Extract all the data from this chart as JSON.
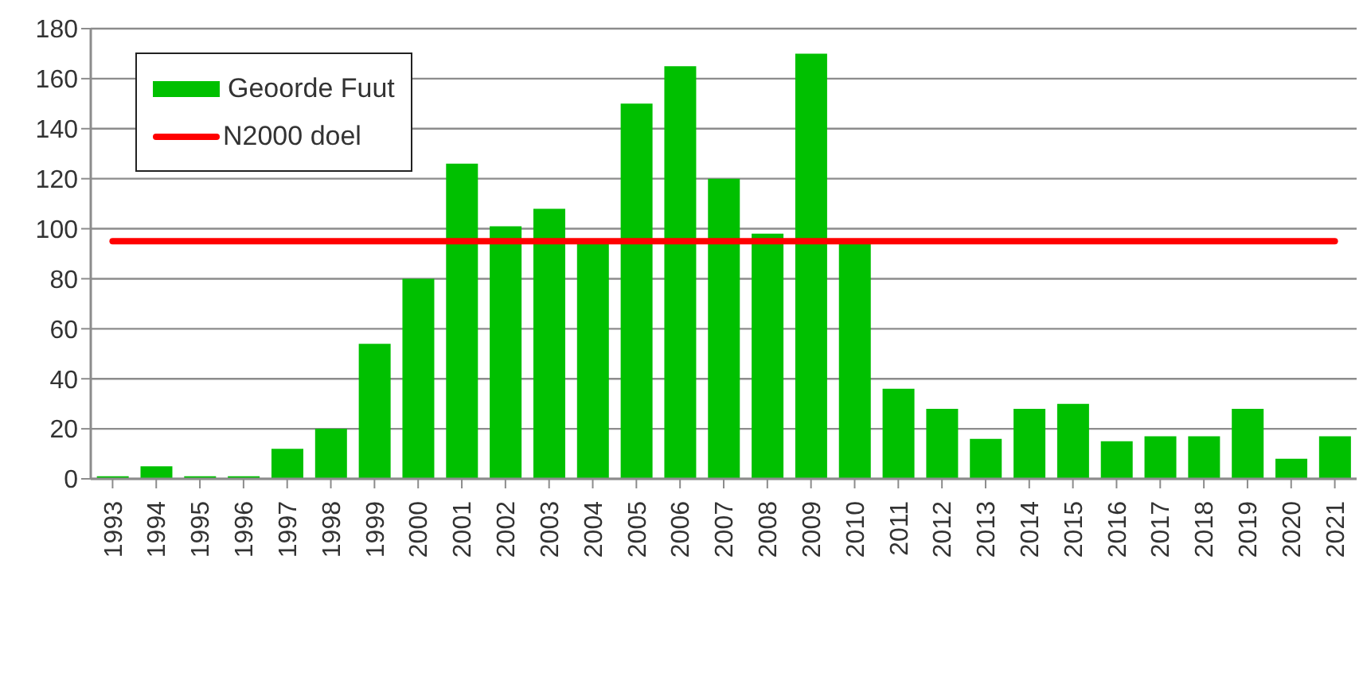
{
  "chart_data": {
    "type": "bar",
    "categories": [
      "1993",
      "1994",
      "1995",
      "1996",
      "1997",
      "1998",
      "1999",
      "2000",
      "2001",
      "2002",
      "2003",
      "2004",
      "2005",
      "2006",
      "2007",
      "2008",
      "2009",
      "2010",
      "2011",
      "2012",
      "2013",
      "2014",
      "2015",
      "2016",
      "2017",
      "2018",
      "2019",
      "2020",
      "2021"
    ],
    "series": [
      {
        "name": "Geoorde Fuut",
        "color": "#00c000",
        "values": [
          1,
          5,
          1,
          1,
          12,
          20,
          54,
          80,
          126,
          101,
          108,
          95,
          150,
          165,
          120,
          98,
          170,
          94,
          36,
          28,
          16,
          28,
          30,
          15,
          17,
          17,
          28,
          8,
          17
        ]
      },
      {
        "name": "N2000 doel",
        "type": "line",
        "color": "#ff0000",
        "line_style": "solid",
        "values": [
          95,
          95,
          95,
          95,
          95,
          95,
          95,
          95,
          95,
          95,
          95,
          95,
          95,
          95,
          95,
          95,
          95,
          95,
          95,
          95,
          95,
          95,
          95,
          95,
          95,
          95,
          95,
          95,
          95
        ]
      }
    ],
    "ylim": [
      0,
      180
    ],
    "yticks": [
      0,
      20,
      40,
      60,
      80,
      100,
      120,
      140,
      160,
      180
    ],
    "grid": "y",
    "legend": "top left"
  }
}
